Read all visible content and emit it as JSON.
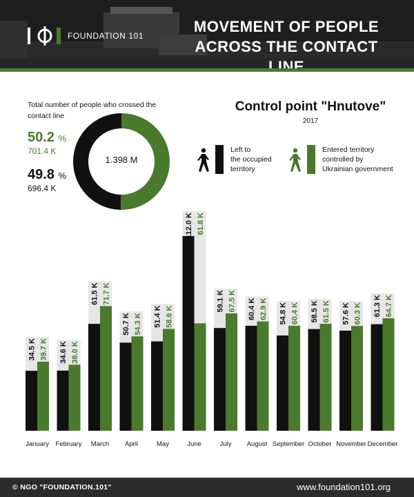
{
  "header": {
    "logo_text": "FOUNDATION 101",
    "title_line1": "MOVEMENT OF PEOPLE",
    "title_line2": "ACROSS THE CONTACT LINE"
  },
  "summary": {
    "label": "Total number of people who crossed the contact line",
    "green_pct": "50.2",
    "green_value": "701.4 K",
    "black_pct": "49.8",
    "black_value": "696.4 K",
    "pct_unit": "%",
    "donut_center": "1.398 M",
    "green_share": 0.502
  },
  "control_point": {
    "title": "Control point \"Hnutove\"",
    "year": "2017"
  },
  "legend": {
    "left_label": [
      "Left to",
      "the occupied",
      "territory"
    ],
    "entered_label": [
      "Entered territory",
      "controlled by",
      "Ukrainian government"
    ]
  },
  "colors": {
    "green": "#4a7a2c",
    "black": "#111111",
    "grey": "#e6e6e6"
  },
  "chart_data": {
    "type": "bar",
    "categories": [
      "January",
      "February",
      "March",
      "April",
      "May",
      "June",
      "July",
      "August",
      "September",
      "October",
      "November",
      "December"
    ],
    "series": [
      {
        "name": "Left to the occupied territory",
        "values": [
          34.5,
          34.6,
          61.5,
          50.7,
          51.4,
          112.0,
          59.1,
          60.4,
          54.8,
          58.5,
          57.6,
          61.3
        ],
        "color": "#111111"
      },
      {
        "name": "Entered territory controlled by Ukrainian government",
        "values": [
          39.7,
          38.0,
          71.7,
          54.3,
          58.6,
          61.8,
          67.5,
          62.9,
          60.4,
          61.5,
          60.3,
          64.7
        ],
        "color": "#4a7a2c"
      }
    ],
    "labels_black": [
      "34.5",
      "34.6",
      "61.5",
      "50.7",
      "51.4",
      "112.0",
      "59.1",
      "60.4",
      "54.8",
      "58.5",
      "57.6",
      "61.3"
    ],
    "labels_green": [
      "39.7",
      "38.0",
      "71.7",
      "54.3",
      "58.6",
      "61.8",
      "67.5",
      "62.9",
      "60.4",
      "61.5",
      "60.3",
      "64.7"
    ],
    "value_unit": "K",
    "ylim": [
      0,
      115
    ],
    "grid": false,
    "legend_position": "top-right"
  },
  "footer": {
    "copyright": "© NGO \"FOUNDATION.101\"",
    "site": "www.foundation101.org"
  }
}
